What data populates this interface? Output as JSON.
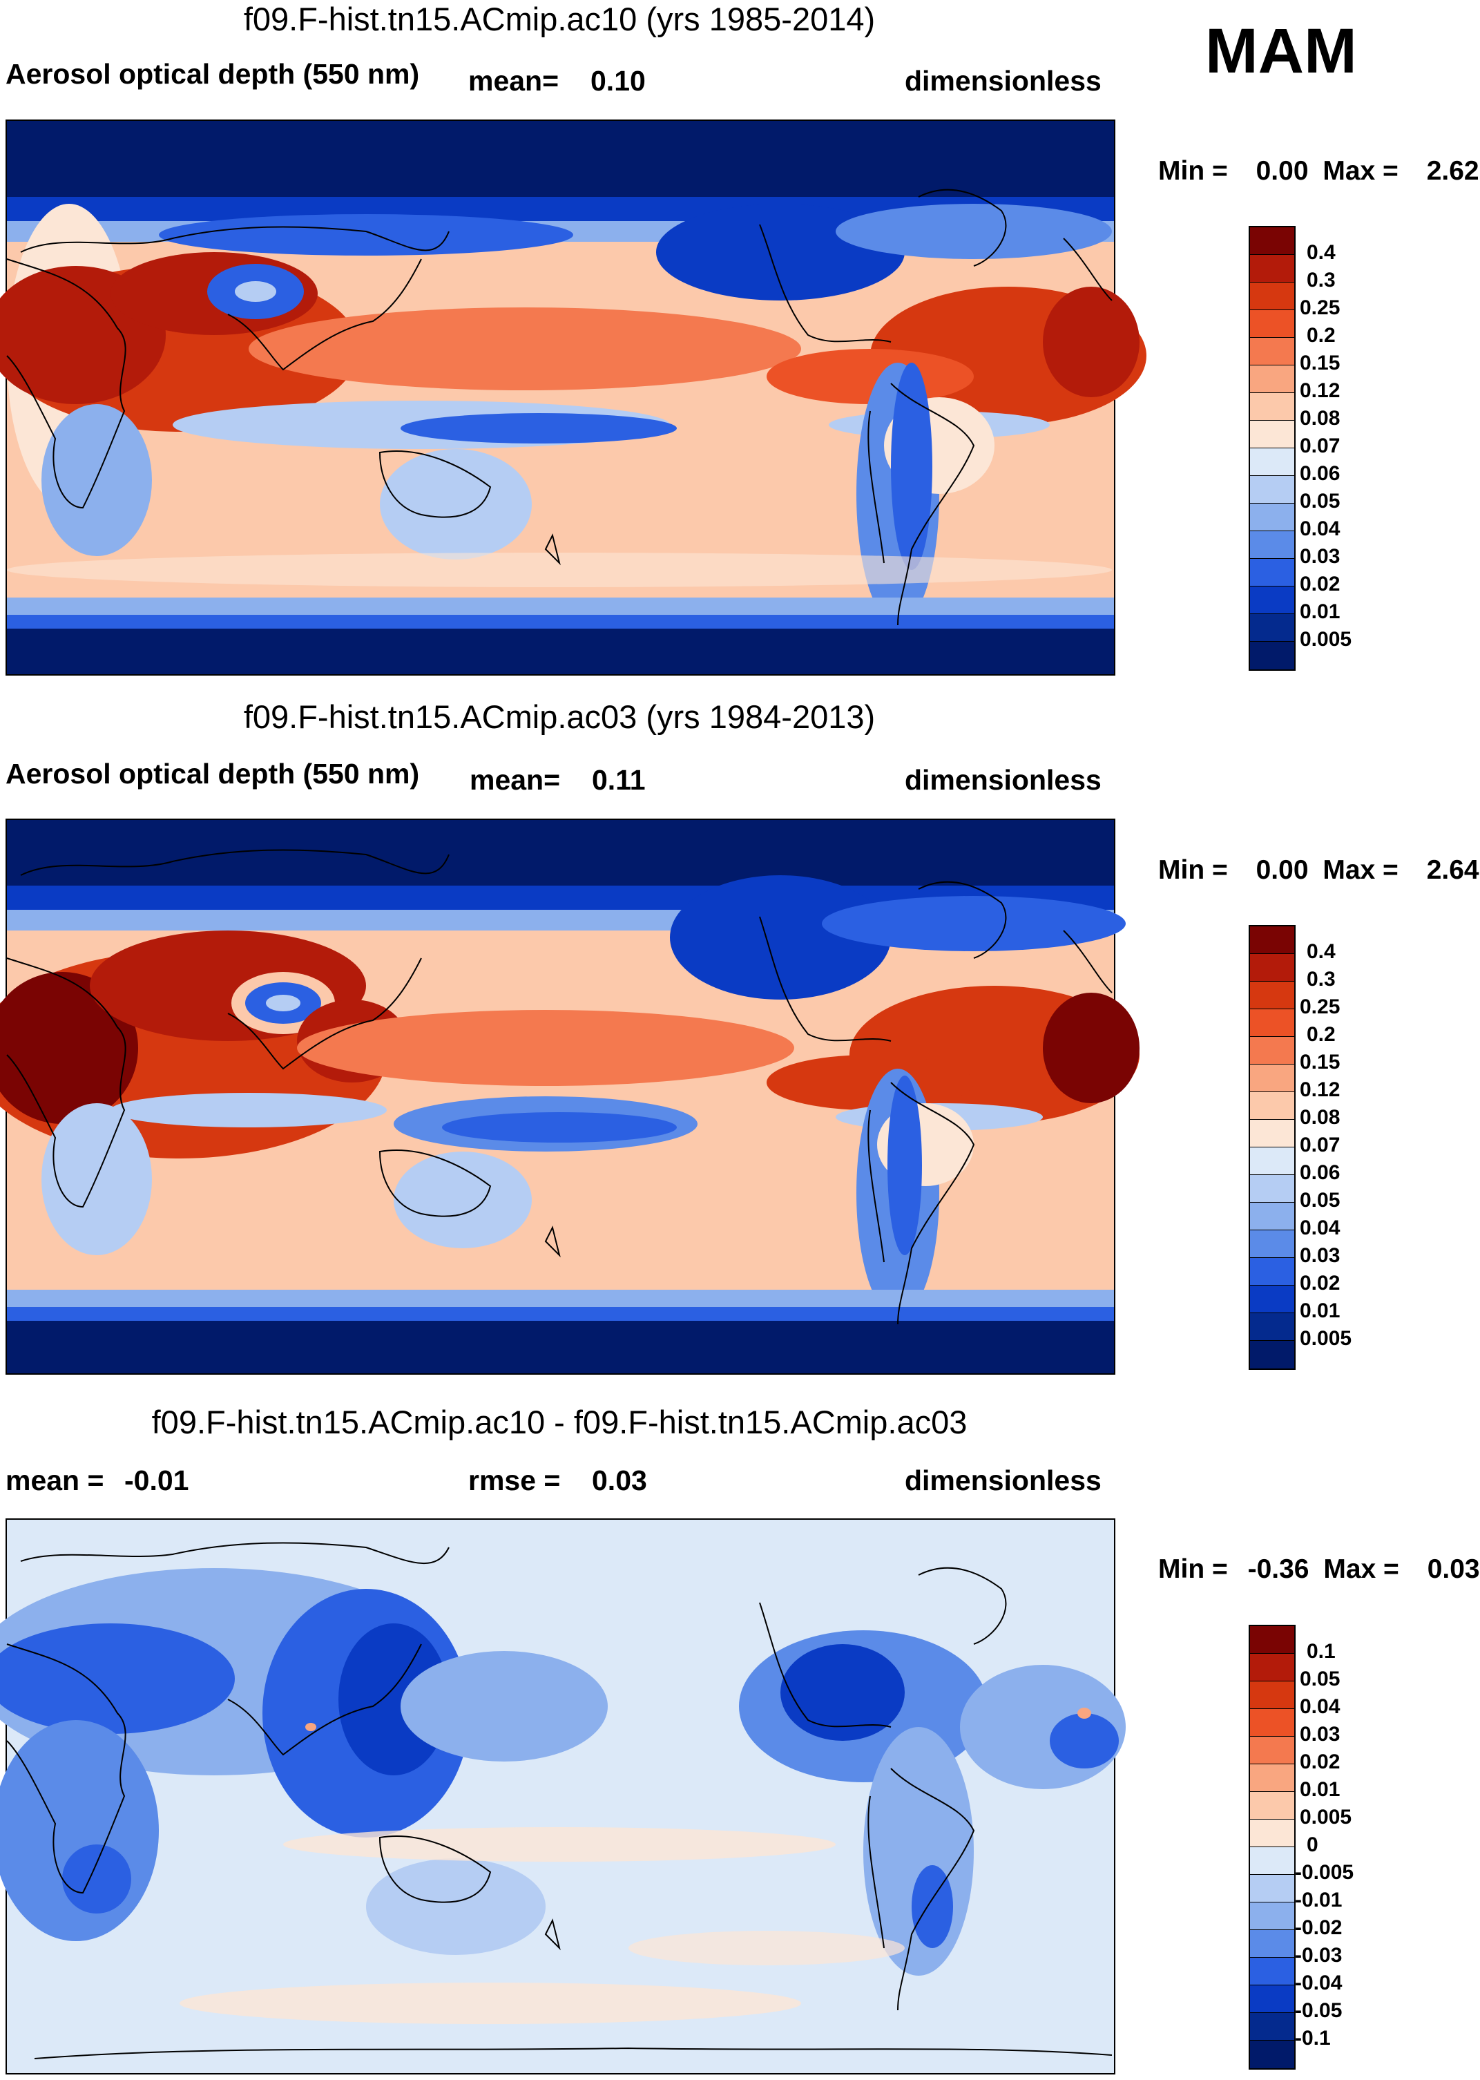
{
  "season": "MAM",
  "chart_data": [
    {
      "type": "heatmap",
      "title": "f09.F-hist.tn15.ACmip.ac10 (yrs 1985-2014)",
      "variable": "Aerosol optical depth (550 nm)",
      "mean_label": "mean=",
      "mean": "0.10",
      "units": "dimensionless",
      "min_label": "Min =",
      "min": "0.00",
      "max_label": "Max =",
      "max": "2.62",
      "levels": [
        "0.4",
        "0.3",
        "0.25",
        "0.2",
        "0.15",
        "0.12",
        "0.08",
        "0.07",
        "0.06",
        "0.05",
        "0.04",
        "0.03",
        "0.02",
        "0.01",
        "0.005"
      ],
      "colors": [
        "#7a0403",
        "#b31b0a",
        "#d63810",
        "#ec5226",
        "#f4794f",
        "#f9a680",
        "#fcc9ab",
        "#fce6d6",
        "#dce9f8",
        "#b5cdf3",
        "#8cb0ed",
        "#5b8be8",
        "#2b60e2",
        "#0a3bc4",
        "#042a8e",
        "#011a6a"
      ]
    },
    {
      "type": "heatmap",
      "title": "f09.F-hist.tn15.ACmip.ac03 (yrs 1984-2013)",
      "variable": "Aerosol optical depth (550 nm)",
      "mean_label": "mean=",
      "mean": "0.11",
      "units": "dimensionless",
      "min_label": "Min =",
      "min": "0.00",
      "max_label": "Max =",
      "max": "2.64",
      "levels": [
        "0.4",
        "0.3",
        "0.25",
        "0.2",
        "0.15",
        "0.12",
        "0.08",
        "0.07",
        "0.06",
        "0.05",
        "0.04",
        "0.03",
        "0.02",
        "0.01",
        "0.005"
      ],
      "colors": [
        "#7a0403",
        "#b31b0a",
        "#d63810",
        "#ec5226",
        "#f4794f",
        "#f9a680",
        "#fcc9ab",
        "#fce6d6",
        "#dce9f8",
        "#b5cdf3",
        "#8cb0ed",
        "#5b8be8",
        "#2b60e2",
        "#0a3bc4",
        "#042a8e",
        "#011a6a"
      ]
    },
    {
      "type": "heatmap",
      "title": "f09.F-hist.tn15.ACmip.ac10 - f09.F-hist.tn15.ACmip.ac03",
      "mean_label": "mean =",
      "mean": "-0.01",
      "rmse_label": "rmse =",
      "rmse": "0.03",
      "units": "dimensionless",
      "min_label": "Min =",
      "min": "-0.36",
      "max_label": "Max =",
      "max": "0.03",
      "levels": [
        "0.1",
        "0.05",
        "0.04",
        "0.03",
        "0.02",
        "0.01",
        "0.005",
        "0",
        "-0.005",
        "-0.01",
        "-0.02",
        "-0.03",
        "-0.04",
        "-0.05",
        "-0.1"
      ],
      "colors": [
        "#7a0403",
        "#b31b0a",
        "#d63810",
        "#ec5226",
        "#f4794f",
        "#f9a680",
        "#fcc9ab",
        "#fce6d6",
        "#dce9f8",
        "#b5cdf3",
        "#8cb0ed",
        "#5b8be8",
        "#2b60e2",
        "#0a3bc4",
        "#042a8e",
        "#011a6a"
      ]
    }
  ]
}
